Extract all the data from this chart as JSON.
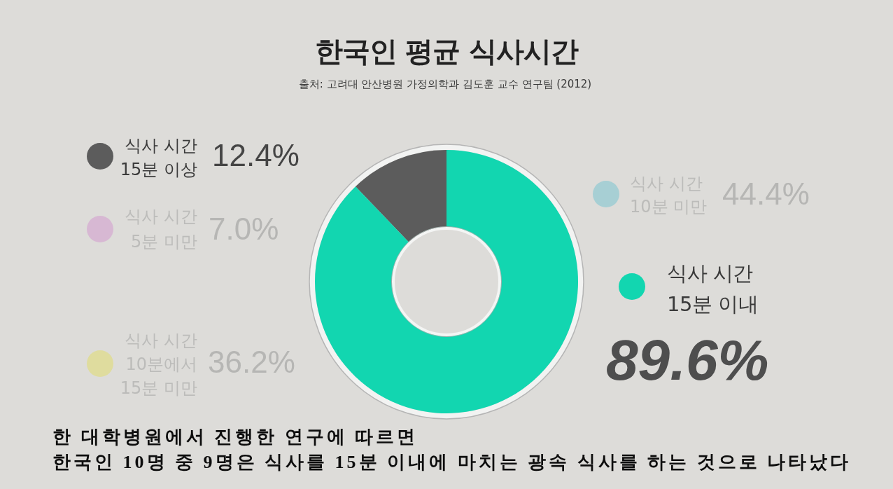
{
  "chart_data": [
    {
      "type": "donut",
      "title": "한국인 평균 식사시간",
      "annotations": [
        "출처: 고려대 안산병원 가정의학과 김도훈 교수 연구팀 (2012)",
        "한 대학병원에서 진행한 연구에 따르면\n한국인 10명 중 9명은 식사를 15분 이내에 마치는 광속 식사를 하는 것으로 나타났다"
      ],
      "categories": [
        "식사 시간\n15분 이상",
        "식사 시간\n15분 이내"
      ],
      "values": [
        12.4,
        89.6
      ],
      "colors": [
        "#5c5c5c",
        "#12d6b0"
      ],
      "value_labels": [
        "12.4%",
        "89.6%"
      ],
      "legend": "left"
    },
    {
      "type": "other",
      "categories": [
        "식사 시간\n10분 미만",
        "식사 시간\n5분 미만",
        "식사 시간\n10분에서\n15분 미만"
      ],
      "values": [
        44.4,
        7.0,
        36.2
      ],
      "colors": [
        "#a7cfd4",
        "#d7b8d3",
        "#dfdc9e"
      ],
      "value_labels": [
        "44.4%",
        "7.0%",
        "36.2%"
      ]
    }
  ]
}
